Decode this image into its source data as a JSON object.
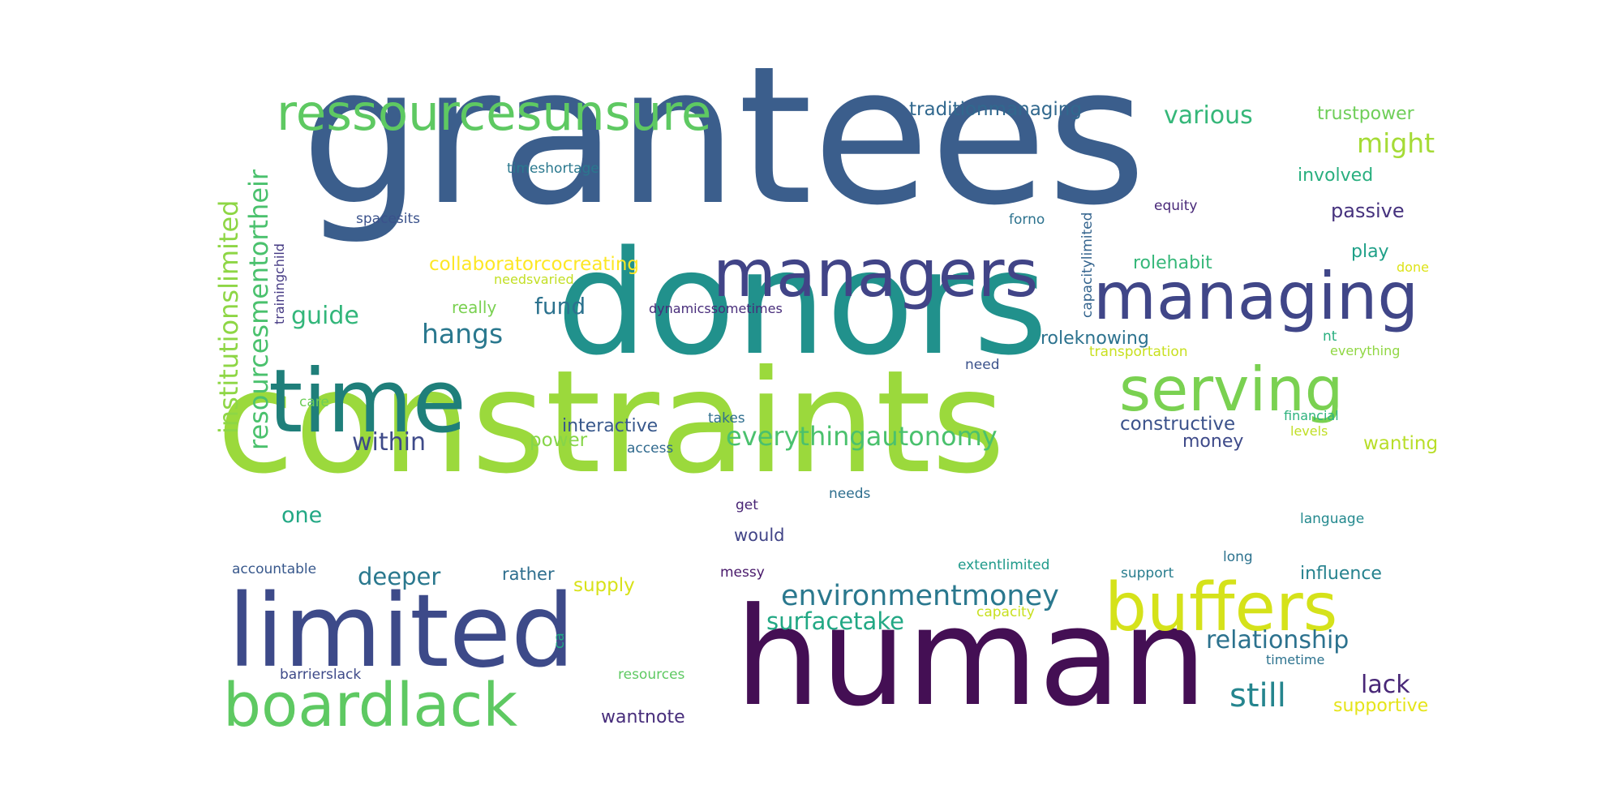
{
  "words": [
    {
      "text": "grantees",
      "color": "#3b5e8c"
    },
    {
      "text": "donors",
      "color": "#21918c"
    },
    {
      "text": "constraints",
      "color": "#9bd93c"
    },
    {
      "text": "human",
      "color": "#440f54"
    },
    {
      "text": "time",
      "color": "#1f7f7a"
    },
    {
      "text": "limited",
      "color": "#3d4a89"
    },
    {
      "text": "managers",
      "color": "#414487"
    },
    {
      "text": "managing",
      "color": "#404688"
    },
    {
      "text": "boardlack",
      "color": "#5ec962"
    },
    {
      "text": "buffers",
      "color": "#d5e21a"
    },
    {
      "text": "serving",
      "color": "#7ad151"
    },
    {
      "text": "ressourcesunsure",
      "color": "#5ec962"
    },
    {
      "text": "institutionslimited",
      "color": "#8ed645"
    },
    {
      "text": "resourcesmentortheir",
      "color": "#4ac16d"
    },
    {
      "text": "environmentmoney",
      "color": "#2a788e"
    },
    {
      "text": "everythingautonomy",
      "color": "#4ac16d"
    },
    {
      "text": "surfacetake",
      "color": "#22a884"
    },
    {
      "text": "relationship",
      "color": "#2c728e"
    },
    {
      "text": "hangs",
      "color": "#2a788e"
    },
    {
      "text": "various",
      "color": "#35b779"
    },
    {
      "text": "might",
      "color": "#a5db36"
    },
    {
      "text": "within",
      "color": "#3e4a89"
    },
    {
      "text": "still",
      "color": "#25858e"
    },
    {
      "text": "deeper",
      "color": "#2a788e"
    },
    {
      "text": "guide",
      "color": "#32b67a"
    },
    {
      "text": "one",
      "color": "#22a884"
    },
    {
      "text": "fund",
      "color": "#2c728e"
    },
    {
      "text": "lack",
      "color": "#482777"
    },
    {
      "text": "traditionmanaging",
      "color": "#31688e"
    },
    {
      "text": "trustpower",
      "color": "#6ece58"
    },
    {
      "text": "involved",
      "color": "#29af7f"
    },
    {
      "text": "passive",
      "color": "#46327e"
    },
    {
      "text": "collaboratorcocreating",
      "color": "#fde725"
    },
    {
      "text": "roleknowing",
      "color": "#2c728e"
    },
    {
      "text": "constructive",
      "color": "#3b528b"
    },
    {
      "text": "interactive",
      "color": "#38588c"
    },
    {
      "text": "influence",
      "color": "#26828e"
    },
    {
      "text": "wanting",
      "color": "#b8de29"
    },
    {
      "text": "money",
      "color": "#3e4a89"
    },
    {
      "text": "rolehabit",
      "color": "#35b779"
    },
    {
      "text": "play",
      "color": "#1fa088"
    },
    {
      "text": "really",
      "color": "#7ad151"
    },
    {
      "text": "power",
      "color": "#86d549"
    },
    {
      "text": "would",
      "color": "#414487"
    },
    {
      "text": "rather",
      "color": "#2e6e8e"
    },
    {
      "text": "supply",
      "color": "#d8e219"
    },
    {
      "text": "wantnote",
      "color": "#472d7b"
    },
    {
      "text": "trainingchild",
      "color": "#443983"
    },
    {
      "text": "capacitylimited",
      "color": "#33638d"
    },
    {
      "text": "timeshortage",
      "color": "#2a788e"
    },
    {
      "text": "spacesits",
      "color": "#3b528b"
    },
    {
      "text": "forno",
      "color": "#2c728e"
    },
    {
      "text": "equity",
      "color": "#482878"
    },
    {
      "text": "needsvaried",
      "color": "#c2df23"
    },
    {
      "text": "dynamicssometimes",
      "color": "#472c7a"
    },
    {
      "text": "done",
      "color": "#dde318"
    },
    {
      "text": "nt",
      "color": "#29af7f"
    },
    {
      "text": "everything",
      "color": "#90d743"
    },
    {
      "text": "transportation",
      "color": "#c8e020"
    },
    {
      "text": "need",
      "color": "#3b528b"
    },
    {
      "text": "care",
      "color": "#6ece58"
    },
    {
      "text": "takes",
      "color": "#2e6e8e"
    },
    {
      "text": "access",
      "color": "#306a8e"
    },
    {
      "text": "financial",
      "color": "#2db27d"
    },
    {
      "text": "levels",
      "color": "#c0df25"
    },
    {
      "text": "needs",
      "color": "#2e6e8e"
    },
    {
      "text": "get",
      "color": "#482475"
    },
    {
      "text": "language",
      "color": "#23898e"
    },
    {
      "text": "accountable",
      "color": "#38588c"
    },
    {
      "text": "messy",
      "color": "#48186a"
    },
    {
      "text": "extentlimited",
      "color": "#1f9a8a"
    },
    {
      "text": "support",
      "color": "#287d8e"
    },
    {
      "text": "long",
      "color": "#2c728e"
    },
    {
      "text": "capacity",
      "color": "#c8e020"
    },
    {
      "text": "ca",
      "color": "#22a884"
    },
    {
      "text": "barrierslack",
      "color": "#3e4a89"
    },
    {
      "text": "resources",
      "color": "#5ec962"
    },
    {
      "text": "timetime",
      "color": "#2c728e"
    },
    {
      "text": "supportive",
      "color": "#e5e419"
    }
  ]
}
